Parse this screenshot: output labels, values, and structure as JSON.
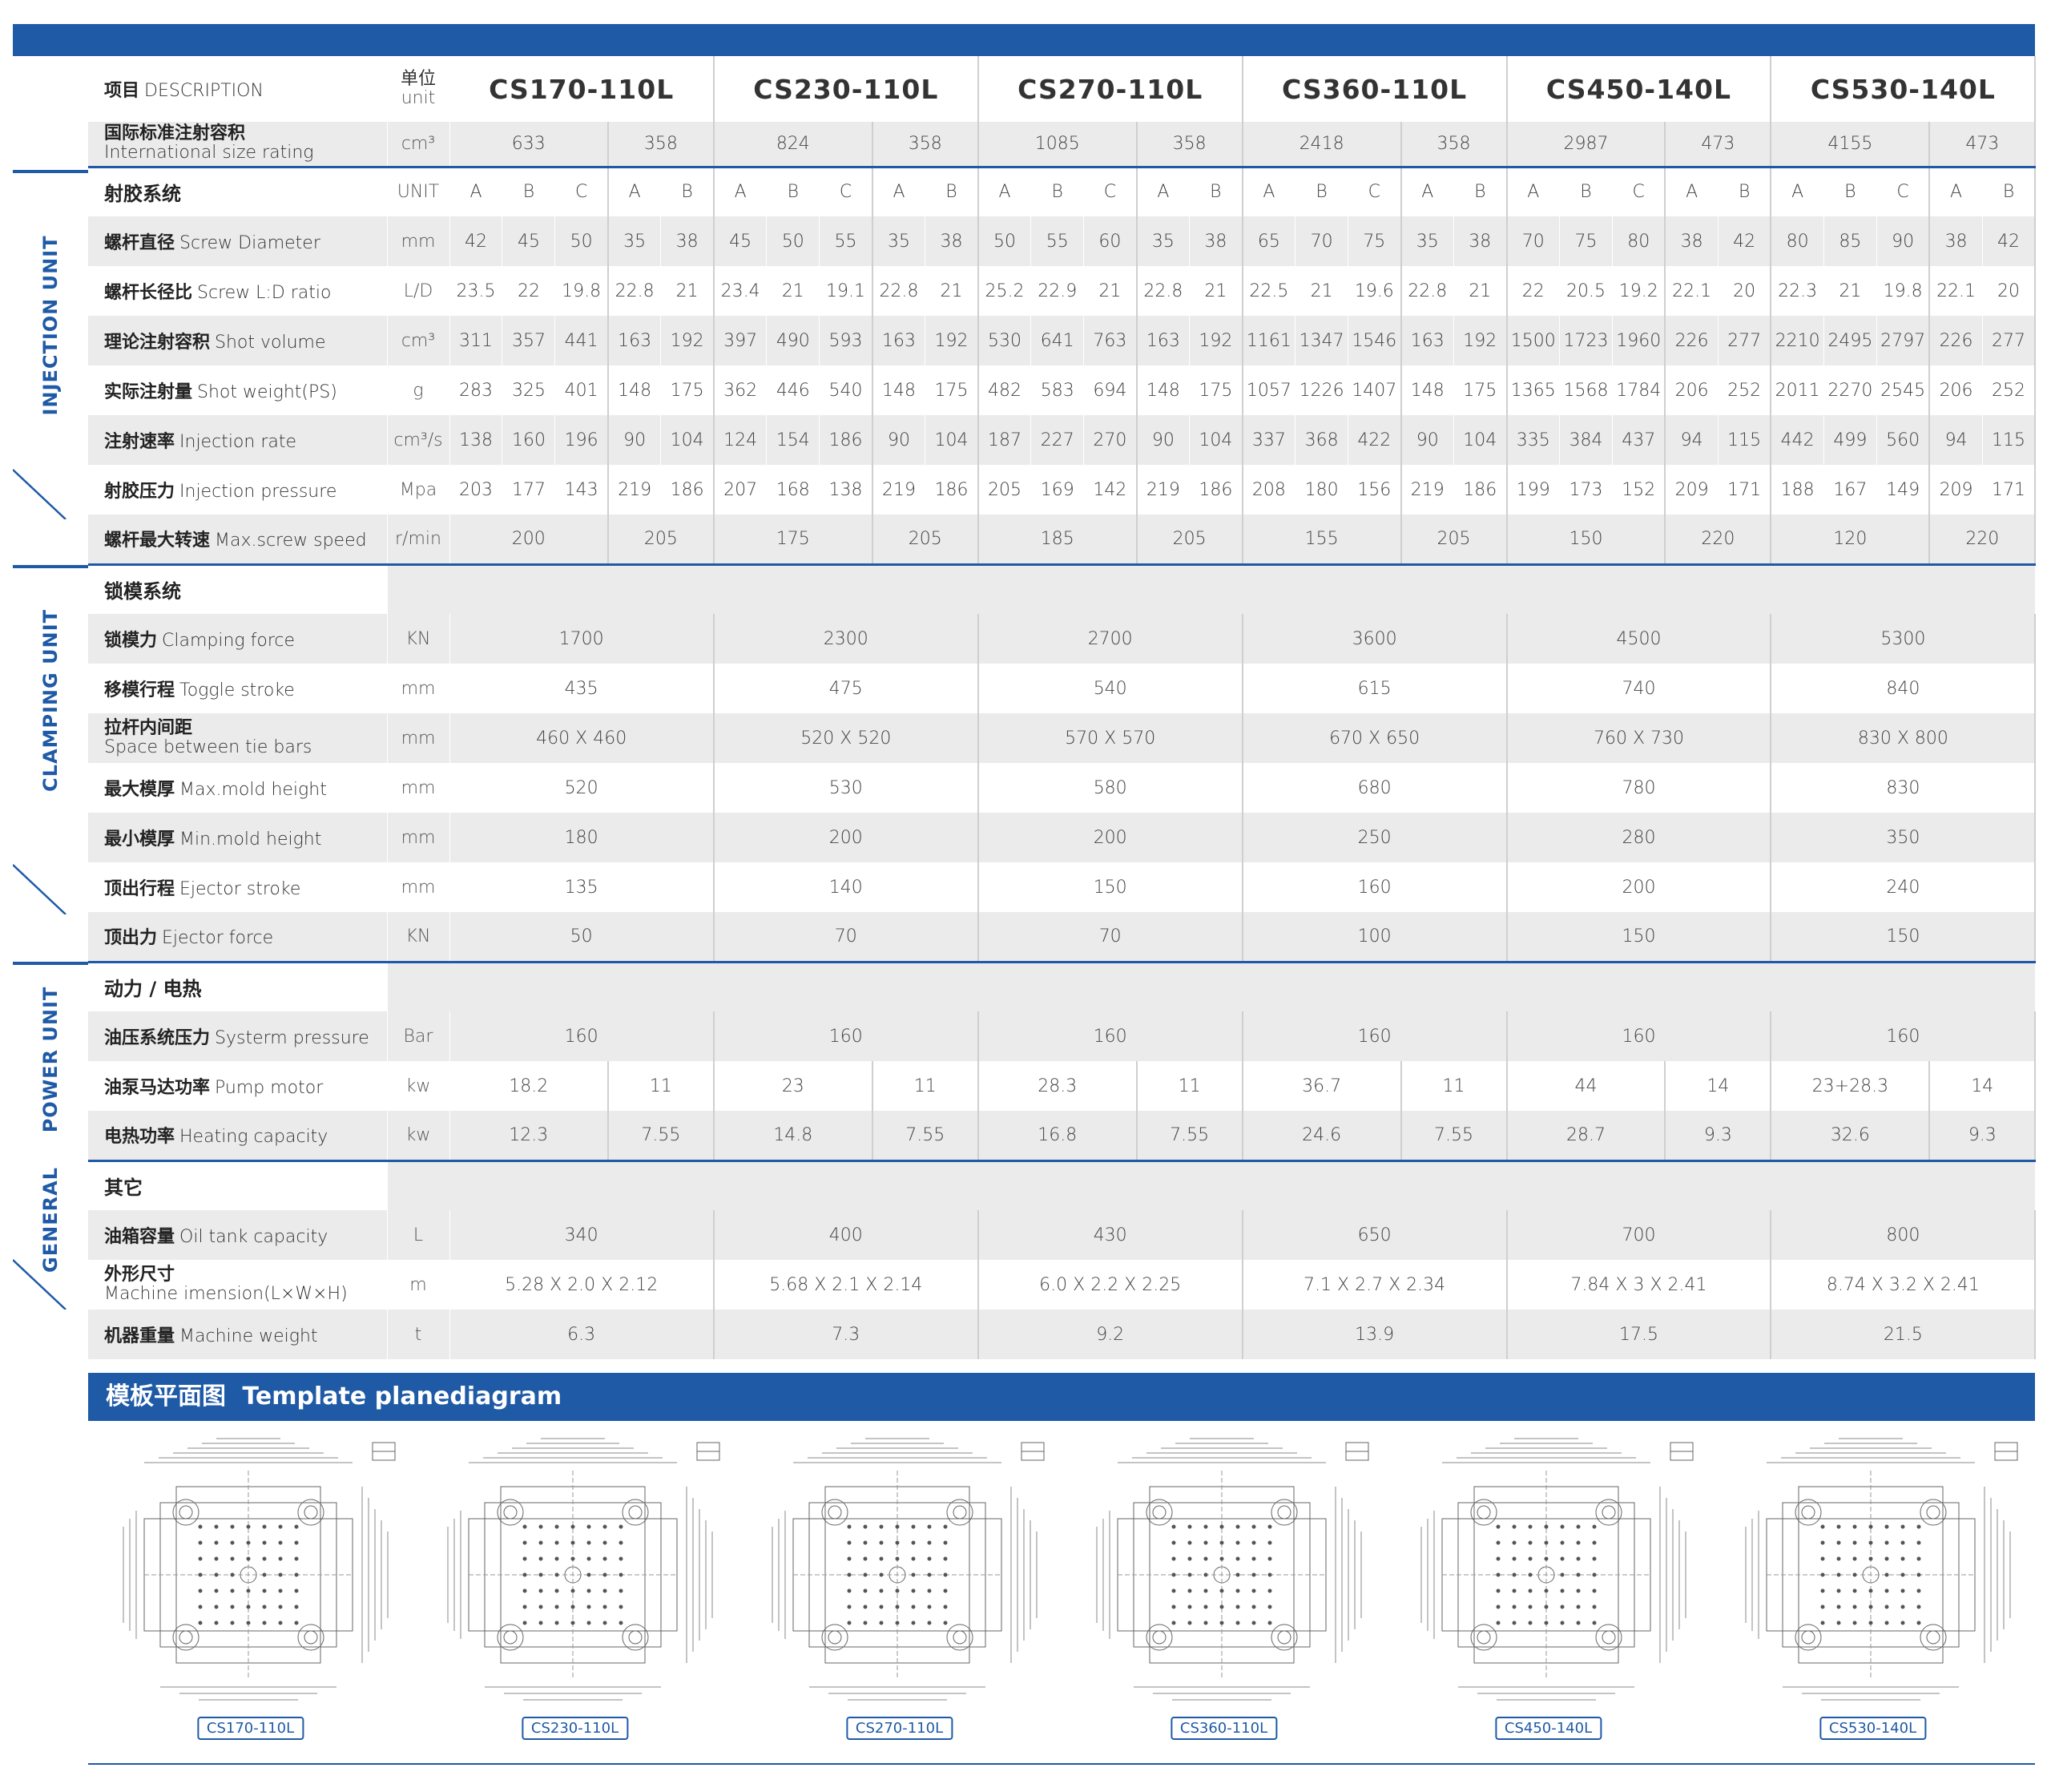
{
  "header": {
    "desc_cn": "项目",
    "desc_en": "DESCRIPTION",
    "unit_cn": "单位",
    "unit_en": "unit",
    "models": [
      "CS170-110L",
      "CS230-110L",
      "CS270-110L",
      "CS360-110L",
      "CS450-140L",
      "CS530-140L"
    ],
    "intl_cn": "国际标准注射容积",
    "intl_en": "International size rating",
    "intl_unit": "cm³",
    "intl_values": [
      "633",
      "358",
      "824",
      "358",
      "1085",
      "358",
      "2418",
      "358",
      "2987",
      "473",
      "4155",
      "473"
    ]
  },
  "side_labels": {
    "injection": "INJECTION UNIT",
    "clamping": "CLAMPING UNIT",
    "power": "POWER UNIT",
    "general": "GENERAL"
  },
  "injection": {
    "title": "射胶系统",
    "unit": "UNIT",
    "screws": [
      "A",
      "B",
      "C",
      "A",
      "B",
      "A",
      "B",
      "C",
      "A",
      "B",
      "A",
      "B",
      "C",
      "A",
      "B",
      "A",
      "B",
      "C",
      "A",
      "B",
      "A",
      "B",
      "C",
      "A",
      "B",
      "A",
      "B",
      "C",
      "A",
      "B"
    ],
    "rows": [
      {
        "cn": "螺杆直径",
        "en": "Screw Diameter",
        "unit": "mm",
        "values": [
          "42",
          "45",
          "50",
          "35",
          "38",
          "45",
          "50",
          "55",
          "35",
          "38",
          "50",
          "55",
          "60",
          "35",
          "38",
          "65",
          "70",
          "75",
          "35",
          "38",
          "70",
          "75",
          "80",
          "38",
          "42",
          "80",
          "85",
          "90",
          "38",
          "42"
        ]
      },
      {
        "cn": "螺杆长径比",
        "en": "Screw L:D ratio",
        "unit": "L/D",
        "values": [
          "23.5",
          "22",
          "19.8",
          "22.8",
          "21",
          "23.4",
          "21",
          "19.1",
          "22.8",
          "21",
          "25.2",
          "22.9",
          "21",
          "22.8",
          "21",
          "22.5",
          "21",
          "19.6",
          "22.8",
          "21",
          "22",
          "20.5",
          "19.2",
          "22.1",
          "20",
          "22.3",
          "21",
          "19.8",
          "22.1",
          "20"
        ]
      },
      {
        "cn": "理论注射容积",
        "en": "Shot volume",
        "unit": "cm³",
        "values": [
          "311",
          "357",
          "441",
          "163",
          "192",
          "397",
          "490",
          "593",
          "163",
          "192",
          "530",
          "641",
          "763",
          "163",
          "192",
          "1161",
          "1347",
          "1546",
          "163",
          "192",
          "1500",
          "1723",
          "1960",
          "226",
          "277",
          "2210",
          "2495",
          "2797",
          "226",
          "277"
        ]
      },
      {
        "cn": "实际注射量",
        "en": "Shot weight(PS)",
        "unit": "g",
        "values": [
          "283",
          "325",
          "401",
          "148",
          "175",
          "362",
          "446",
          "540",
          "148",
          "175",
          "482",
          "583",
          "694",
          "148",
          "175",
          "1057",
          "1226",
          "1407",
          "148",
          "175",
          "1365",
          "1568",
          "1784",
          "206",
          "252",
          "2011",
          "2270",
          "2545",
          "206",
          "252"
        ]
      },
      {
        "cn": "注射速率",
        "en": "Injection rate",
        "unit": "cm³/s",
        "values": [
          "138",
          "160",
          "196",
          "90",
          "104",
          "124",
          "154",
          "186",
          "90",
          "104",
          "187",
          "227",
          "270",
          "90",
          "104",
          "337",
          "368",
          "422",
          "90",
          "104",
          "335",
          "384",
          "437",
          "94",
          "115",
          "442",
          "499",
          "560",
          "94",
          "115"
        ]
      },
      {
        "cn": "射胶压力",
        "en": "Injection pressure",
        "unit": "Mpa",
        "values": [
          "203",
          "177",
          "143",
          "219",
          "186",
          "207",
          "168",
          "138",
          "219",
          "186",
          "205",
          "169",
          "142",
          "219",
          "186",
          "208",
          "180",
          "156",
          "219",
          "186",
          "199",
          "173",
          "152",
          "209",
          "171",
          "188",
          "167",
          "149",
          "209",
          "171"
        ]
      }
    ],
    "speed": {
      "cn": "螺杆最大转速",
      "en": "Max.screw speed",
      "unit": "r/min",
      "values": [
        "200",
        "205",
        "175",
        "205",
        "185",
        "205",
        "155",
        "205",
        "150",
        "220",
        "120",
        "220"
      ]
    }
  },
  "clamping": {
    "title": "锁模系统",
    "rows": [
      {
        "cn": "锁模力",
        "en": "Clamping force",
        "unit": "KN",
        "values": [
          "1700",
          "2300",
          "2700",
          "3600",
          "4500",
          "5300"
        ]
      },
      {
        "cn": "移模行程",
        "en": "Toggle stroke",
        "unit": "mm",
        "values": [
          "435",
          "475",
          "540",
          "615",
          "740",
          "840"
        ]
      },
      {
        "cn": "拉杆内间距",
        "en": "Space between tie bars",
        "unit": "mm",
        "values": [
          "460 X 460",
          "520 X 520",
          "570 X 570",
          "670 X 650",
          "760 X 730",
          "830 X 800"
        ]
      },
      {
        "cn": "最大模厚",
        "en": "Max.mold height",
        "unit": "mm",
        "values": [
          "520",
          "530",
          "580",
          "680",
          "780",
          "830"
        ]
      },
      {
        "cn": "最小模厚",
        "en": "Min.mold height",
        "unit": "mm",
        "values": [
          "180",
          "200",
          "200",
          "250",
          "280",
          "350"
        ]
      },
      {
        "cn": "顶出行程",
        "en": "Ejector stroke",
        "unit": "mm",
        "values": [
          "135",
          "140",
          "150",
          "160",
          "200",
          "240"
        ]
      },
      {
        "cn": "顶出力",
        "en": "Ejector force",
        "unit": "KN",
        "values": [
          "50",
          "70",
          "70",
          "100",
          "150",
          "150"
        ]
      }
    ]
  },
  "power": {
    "title": "动力 / 电热",
    "system": {
      "cn": "油压系统压力",
      "en": "Systerm pressure",
      "unit": "Bar",
      "values": [
        "160",
        "160",
        "160",
        "160",
        "160",
        "160"
      ]
    },
    "pump": {
      "cn": "油泵马达功率",
      "en": "Pump motor",
      "unit": "kw",
      "values": [
        "18.2",
        "11",
        "23",
        "11",
        "28.3",
        "11",
        "36.7",
        "11",
        "44",
        "14",
        "23+28.3",
        "14"
      ]
    },
    "heat": {
      "cn": "电热功率",
      "en": "Heating capacity",
      "unit": "kw",
      "values": [
        "12.3",
        "7.55",
        "14.8",
        "7.55",
        "16.8",
        "7.55",
        "24.6",
        "7.55",
        "28.7",
        "9.3",
        "32.6",
        "9.3"
      ]
    }
  },
  "general": {
    "title": "其它",
    "rows": [
      {
        "cn": "油箱容量",
        "en": "Oil tank capacity",
        "unit": "L",
        "values": [
          "340",
          "400",
          "430",
          "650",
          "700",
          "800"
        ]
      },
      {
        "cn": "外形尺寸",
        "en": "Machine imension(L×W×H)",
        "unit": "m",
        "values": [
          "5.28 X 2.0 X 2.12",
          "5.68 X 2.1 X 2.14",
          "6.0 X 2.2 X 2.25",
          "7.1 X 2.7 X 2.34",
          "7.84 X 3 X 2.41",
          "8.74 X 3.2 X 2.41"
        ]
      },
      {
        "cn": "机器重量",
        "en": "Machine weight",
        "unit": "t",
        "values": [
          "6.3",
          "7.3",
          "9.2",
          "13.9",
          "17.5",
          "21.5"
        ]
      }
    ]
  },
  "diagram": {
    "title_cn": "模板平面图",
    "title_en": "Template planediagram",
    "tags": [
      "CS170-110L",
      "CS230-110L",
      "CS270-110L",
      "CS360-110L",
      "CS450-140L",
      "CS530-140L"
    ]
  },
  "colors": {
    "brand_blue": "#1f5aa6",
    "row_gray": "#ebebeb"
  }
}
